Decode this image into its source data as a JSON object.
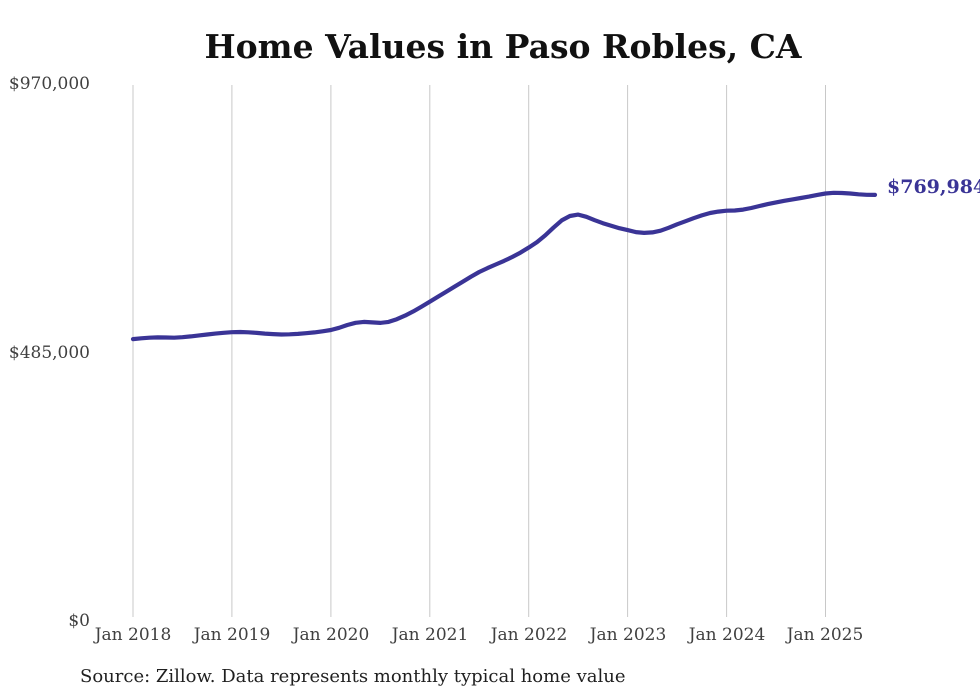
{
  "title": "Home Values in Paso Robles, CA",
  "source_note": "Source: Zillow. Data represents monthly typical home value",
  "annotation": {
    "final_value_label": "$769,984"
  },
  "y_axis": {
    "tick_labels": [
      "$970,000",
      "$485,000",
      "$0"
    ]
  },
  "x_axis": {
    "tick_labels": [
      "Jan 2018",
      "Jan 2019",
      "Jan 2020",
      "Jan 2021",
      "Jan 2022",
      "Jan 2023",
      "Jan 2024",
      "Jan 2025"
    ]
  },
  "colors": {
    "line": "#3a3496",
    "grid": "#c8c8c8",
    "axis_text": "#404040",
    "title_text": "#111111",
    "annotation_text": "#3a3496",
    "background": "#ffffff"
  },
  "chart_data": {
    "type": "line",
    "title": "Home Values in Paso Robles, CA",
    "xlabel": "",
    "ylabel": "",
    "unit": "USD",
    "ylim": [
      0,
      970000
    ],
    "y_ticks": [
      0,
      485000,
      970000
    ],
    "x_tick_labels": [
      "Jan 2018",
      "Jan 2019",
      "Jan 2020",
      "Jan 2021",
      "Jan 2022",
      "Jan 2023",
      "Jan 2024",
      "Jan 2025"
    ],
    "frequency": "monthly",
    "x_start": "Jan 2018",
    "x_end": "Jul 2025",
    "grid": "vertical-only",
    "legend": false,
    "final_value": 769984,
    "series": [
      {
        "name": "Typical home value",
        "values": [
          510000,
          511500,
          512500,
          513200,
          513000,
          512600,
          513500,
          515000,
          516800,
          518300,
          520000,
          521500,
          522500,
          522800,
          522300,
          521200,
          520000,
          519000,
          518400,
          518700,
          519500,
          520700,
          522200,
          524200,
          526500,
          530500,
          535500,
          539500,
          541000,
          540200,
          539200,
          541000,
          546000,
          552500,
          560000,
          568500,
          577500,
          586500,
          595500,
          604500,
          613500,
          622500,
          631000,
          638000,
          644500,
          651000,
          658000,
          666000,
          675000,
          685000,
          697000,
          711000,
          724000,
          732000,
          734500,
          730500,
          724500,
          719000,
          714500,
          710000,
          706500,
          703000,
          701500,
          702500,
          705500,
          711000,
          717000,
          722500,
          728000,
          733000,
          737500,
          740000,
          741500,
          742000,
          743500,
          746500,
          750000,
          753500,
          756500,
          759500,
          762000,
          764500,
          767000,
          770000,
          772500,
          773800,
          773500,
          772500,
          771200,
          770300,
          769984
        ]
      }
    ]
  }
}
